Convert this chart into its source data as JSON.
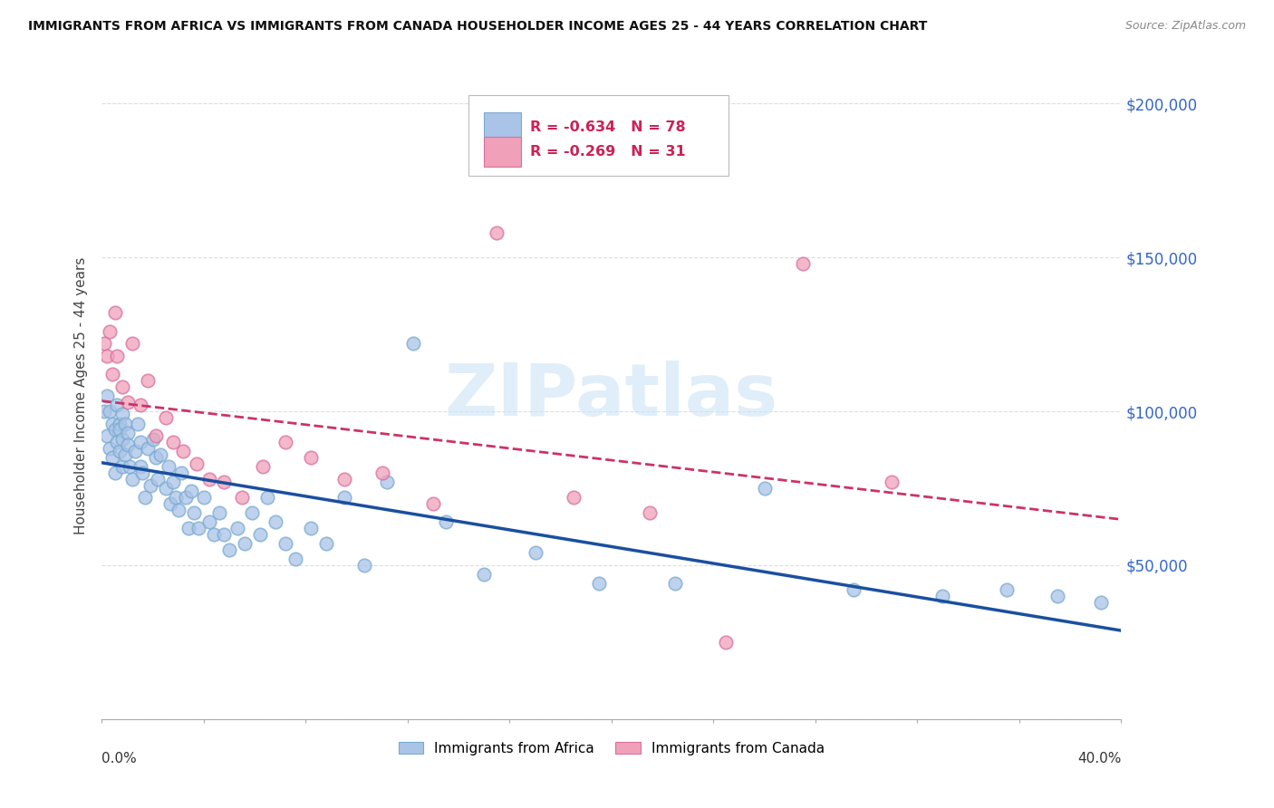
{
  "title": "IMMIGRANTS FROM AFRICA VS IMMIGRANTS FROM CANADA HOUSEHOLDER INCOME AGES 25 - 44 YEARS CORRELATION CHART",
  "source": "Source: ZipAtlas.com",
  "ylabel": "Householder Income Ages 25 - 44 years",
  "xlim": [
    0.0,
    0.4
  ],
  "ylim": [
    0,
    210000
  ],
  "yticks": [
    0,
    50000,
    100000,
    150000,
    200000
  ],
  "ytick_labels": [
    "",
    "$50,000",
    "$100,000",
    "$150,000",
    "$200,000"
  ],
  "legend_africa_R": "-0.634",
  "legend_africa_N": "78",
  "legend_canada_R": "-0.269",
  "legend_canada_N": "31",
  "africa_color": "#aac4e8",
  "africa_edge_color": "#7aaad0",
  "africa_line_color": "#1a4fa0",
  "canada_color": "#f0a0b8",
  "canada_edge_color": "#d870a0",
  "canada_line_color": "#cc3366",
  "watermark_color": "#cce4f5",
  "background_color": "#ffffff",
  "grid_color": "#dddddd",
  "africa_scatter_x": [
    0.001,
    0.002,
    0.002,
    0.003,
    0.003,
    0.004,
    0.004,
    0.005,
    0.005,
    0.006,
    0.006,
    0.007,
    0.007,
    0.007,
    0.008,
    0.008,
    0.008,
    0.009,
    0.009,
    0.01,
    0.01,
    0.011,
    0.012,
    0.013,
    0.014,
    0.015,
    0.015,
    0.016,
    0.017,
    0.018,
    0.019,
    0.02,
    0.021,
    0.022,
    0.023,
    0.025,
    0.026,
    0.027,
    0.028,
    0.029,
    0.03,
    0.031,
    0.033,
    0.034,
    0.035,
    0.036,
    0.038,
    0.04,
    0.042,
    0.044,
    0.046,
    0.048,
    0.05,
    0.053,
    0.056,
    0.059,
    0.062,
    0.065,
    0.068,
    0.072,
    0.076,
    0.082,
    0.088,
    0.095,
    0.103,
    0.112,
    0.122,
    0.135,
    0.15,
    0.17,
    0.195,
    0.225,
    0.26,
    0.295,
    0.33,
    0.355,
    0.375,
    0.392
  ],
  "africa_scatter_y": [
    100000,
    105000,
    92000,
    100000,
    88000,
    96000,
    85000,
    94000,
    80000,
    102000,
    90000,
    96000,
    87000,
    94000,
    82000,
    99000,
    91000,
    96000,
    86000,
    93000,
    89000,
    82000,
    78000,
    87000,
    96000,
    82000,
    90000,
    80000,
    72000,
    88000,
    76000,
    91000,
    85000,
    78000,
    86000,
    75000,
    82000,
    70000,
    77000,
    72000,
    68000,
    80000,
    72000,
    62000,
    74000,
    67000,
    62000,
    72000,
    64000,
    60000,
    67000,
    60000,
    55000,
    62000,
    57000,
    67000,
    60000,
    72000,
    64000,
    57000,
    52000,
    62000,
    57000,
    72000,
    50000,
    77000,
    122000,
    64000,
    47000,
    54000,
    44000,
    44000,
    75000,
    42000,
    40000,
    42000,
    40000,
    38000
  ],
  "canada_scatter_x": [
    0.001,
    0.002,
    0.003,
    0.004,
    0.005,
    0.006,
    0.008,
    0.01,
    0.012,
    0.015,
    0.018,
    0.021,
    0.025,
    0.028,
    0.032,
    0.037,
    0.042,
    0.048,
    0.055,
    0.063,
    0.072,
    0.082,
    0.095,
    0.11,
    0.13,
    0.155,
    0.185,
    0.215,
    0.245,
    0.275,
    0.31
  ],
  "canada_scatter_y": [
    122000,
    118000,
    126000,
    112000,
    132000,
    118000,
    108000,
    103000,
    122000,
    102000,
    110000,
    92000,
    98000,
    90000,
    87000,
    83000,
    78000,
    77000,
    72000,
    82000,
    90000,
    85000,
    78000,
    80000,
    70000,
    158000,
    72000,
    67000,
    25000,
    148000,
    77000
  ]
}
